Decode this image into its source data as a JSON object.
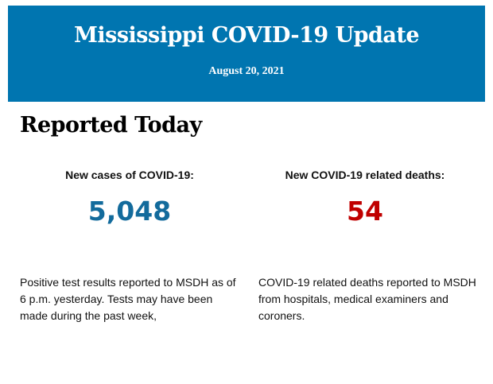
{
  "header": {
    "title": "Mississippi COVID-19 Update",
    "date": "August 20, 2021"
  },
  "section": {
    "heading": "Reported Today"
  },
  "cases": {
    "label": "New cases of COVID-19:",
    "value": "5,048",
    "color": "#136b9c",
    "description": "Positive test results reported to MSDH as of 6 p.m. yesterday. Tests may have been made during the past week,"
  },
  "deaths": {
    "label": "New COVID-19 related deaths:",
    "value": "54",
    "color": "#c00000",
    "description": "COVID-19 related deaths reported to MSDH from hospitals, medical examiners and coroners."
  },
  "colors": {
    "banner": "#0075b0"
  }
}
